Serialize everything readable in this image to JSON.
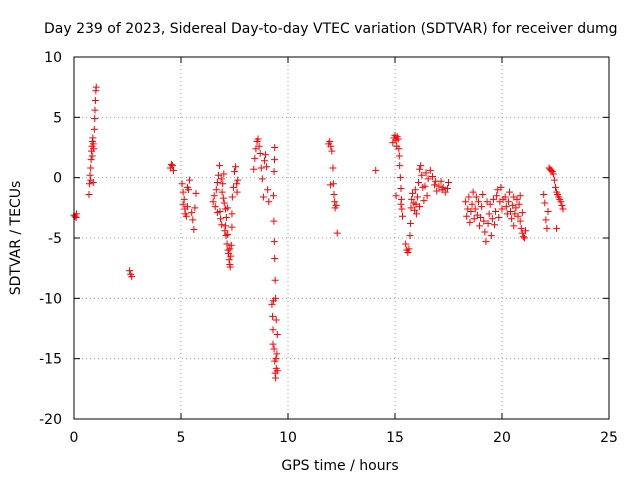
{
  "chart_data": {
    "type": "scatter",
    "title": "Day 239 of 2023, Sidereal Day-to-day VTEC variation (SDTVAR) for receiver dumg",
    "xlabel": "GPS time / hours",
    "ylabel": "SDTVAR / TECUs",
    "xlim": [
      0,
      25
    ],
    "ylim": [
      -20,
      10
    ],
    "xticks": [
      0,
      5,
      10,
      15,
      20,
      25
    ],
    "yticks": [
      -20,
      -15,
      -10,
      -5,
      0,
      5,
      10
    ],
    "xtick_labels": [
      "0",
      "5",
      "10",
      "15",
      "20",
      "25"
    ],
    "ytick_labels": [
      "-20",
      "-15",
      "-10",
      "-5",
      "0",
      "5",
      "10"
    ],
    "grid": true,
    "marker": "plus",
    "color": "#ff0000",
    "series": [
      {
        "name": "SDTVAR",
        "points": [
          [
            0.0,
            -3.1
          ],
          [
            0.05,
            -3.2
          ],
          [
            0.1,
            -3.3
          ],
          [
            0.12,
            -3.0
          ],
          [
            0.7,
            -1.4
          ],
          [
            0.72,
            -0.5
          ],
          [
            0.75,
            0.2
          ],
          [
            0.78,
            0.8
          ],
          [
            0.8,
            1.5
          ],
          [
            0.82,
            2.2
          ],
          [
            0.84,
            2.6
          ],
          [
            0.86,
            3.0
          ],
          [
            0.88,
            3.3
          ],
          [
            0.9,
            2.8
          ],
          [
            0.92,
            2.4
          ],
          [
            0.95,
            4.0
          ],
          [
            0.97,
            4.9
          ],
          [
            0.98,
            5.6
          ],
          [
            1.0,
            6.4
          ],
          [
            1.02,
            7.2
          ],
          [
            1.04,
            7.5
          ],
          [
            0.78,
            -0.2
          ],
          [
            0.85,
            1.8
          ],
          [
            0.9,
            -0.4
          ],
          [
            2.6,
            -7.7
          ],
          [
            2.65,
            -8.0
          ],
          [
            2.7,
            -8.2
          ],
          [
            4.5,
            0.8
          ],
          [
            4.55,
            1.1
          ],
          [
            4.6,
            1.0
          ],
          [
            4.65,
            0.6
          ],
          [
            5.05,
            -0.5
          ],
          [
            5.1,
            -1.2
          ],
          [
            5.15,
            -1.8
          ],
          [
            5.18,
            -2.6
          ],
          [
            5.2,
            -3.0
          ],
          [
            5.25,
            -3.2
          ],
          [
            5.3,
            -2.4
          ],
          [
            5.35,
            -1.0
          ],
          [
            5.4,
            -0.2
          ],
          [
            5.5,
            -2.9
          ],
          [
            5.55,
            -3.5
          ],
          [
            5.6,
            -4.3
          ],
          [
            5.65,
            -2.5
          ],
          [
            5.7,
            -1.3
          ],
          [
            5.1,
            -2.2
          ],
          [
            5.3,
            -0.8
          ],
          [
            6.5,
            -2.0
          ],
          [
            6.55,
            -1.5
          ],
          [
            6.6,
            -2.4
          ],
          [
            6.65,
            -1.0
          ],
          [
            6.7,
            -0.4
          ],
          [
            6.75,
            0.2
          ],
          [
            6.8,
            1.0
          ],
          [
            6.82,
            -2.8
          ],
          [
            6.85,
            -3.4
          ],
          [
            6.9,
            -3.9
          ],
          [
            6.92,
            -1.2
          ],
          [
            6.95,
            -0.5
          ],
          [
            7.0,
            0.3
          ],
          [
            7.02,
            -2.1
          ],
          [
            7.05,
            -4.4
          ],
          [
            7.08,
            -4.0
          ],
          [
            7.1,
            -4.8
          ],
          [
            7.12,
            -3.3
          ],
          [
            7.15,
            -5.5
          ],
          [
            7.18,
            -2.5
          ],
          [
            7.2,
            -6.0
          ],
          [
            7.22,
            -6.3
          ],
          [
            7.25,
            -6.8
          ],
          [
            7.28,
            -7.2
          ],
          [
            7.3,
            -7.4
          ],
          [
            7.32,
            -6.5
          ],
          [
            7.35,
            -5.6
          ],
          [
            7.38,
            -3.0
          ],
          [
            7.4,
            -1.6
          ],
          [
            7.45,
            -0.8
          ],
          [
            7.5,
            0.5
          ],
          [
            7.55,
            0.9
          ],
          [
            7.6,
            -0.5
          ],
          [
            7.62,
            -1.2
          ],
          [
            7.65,
            -0.2
          ],
          [
            6.88,
            -0.1
          ],
          [
            6.98,
            -1.7
          ],
          [
            7.08,
            -2.6
          ],
          [
            7.18,
            -4.7
          ],
          [
            7.28,
            -5.9
          ],
          [
            7.38,
            -4.1
          ],
          [
            6.7,
            -2.9
          ],
          [
            8.4,
            0.7
          ],
          [
            8.45,
            1.6
          ],
          [
            8.5,
            2.4
          ],
          [
            8.55,
            3.0
          ],
          [
            8.6,
            3.2
          ],
          [
            8.65,
            2.6
          ],
          [
            8.7,
            2.0
          ],
          [
            8.75,
            0.8
          ],
          [
            8.8,
            -0.1
          ],
          [
            8.85,
            -1.6
          ],
          [
            8.9,
            1.4
          ],
          [
            8.95,
            1.9
          ],
          [
            9.0,
            0.9
          ],
          [
            9.05,
            -1.0
          ],
          [
            9.1,
            -2.0
          ],
          [
            9.25,
            -10.5
          ],
          [
            9.28,
            -11.5
          ],
          [
            9.3,
            -12.6
          ],
          [
            9.32,
            -10.2
          ],
          [
            9.35,
            -14.2
          ],
          [
            9.38,
            -15.2
          ],
          [
            9.4,
            -16.2
          ],
          [
            9.42,
            -16.6
          ],
          [
            9.45,
            -15.8
          ],
          [
            9.48,
            -14.6
          ],
          [
            9.5,
            -13.0
          ],
          [
            9.45,
            -11.8
          ],
          [
            9.42,
            -10.0
          ],
          [
            9.4,
            -8.5
          ],
          [
            9.38,
            -6.7
          ],
          [
            9.36,
            -5.3
          ],
          [
            9.34,
            -3.6
          ],
          [
            9.32,
            -1.5
          ],
          [
            9.35,
            0.5
          ],
          [
            9.37,
            1.5
          ],
          [
            9.38,
            2.5
          ],
          [
            9.3,
            -13.8
          ],
          [
            9.5,
            -16.0
          ],
          [
            9.44,
            -15.0
          ],
          [
            11.9,
            2.8
          ],
          [
            11.95,
            3.0
          ],
          [
            12.0,
            2.6
          ],
          [
            12.05,
            2.2
          ],
          [
            12.1,
            0.8
          ],
          [
            12.12,
            -0.5
          ],
          [
            12.15,
            -1.4
          ],
          [
            12.18,
            -2.0
          ],
          [
            12.2,
            -2.5
          ],
          [
            12.25,
            -2.3
          ],
          [
            12.3,
            -4.6
          ],
          [
            11.98,
            -0.6
          ],
          [
            14.1,
            0.6
          ],
          [
            14.9,
            2.9
          ],
          [
            14.95,
            3.3
          ],
          [
            15.0,
            3.5
          ],
          [
            15.05,
            3.1
          ],
          [
            15.08,
            2.6
          ],
          [
            15.1,
            3.4
          ],
          [
            15.15,
            3.2
          ],
          [
            15.18,
            2.4
          ],
          [
            15.2,
            1.8
          ],
          [
            15.22,
            1.0
          ],
          [
            15.25,
            0.0
          ],
          [
            15.28,
            -0.9
          ],
          [
            15.3,
            -1.8
          ],
          [
            15.32,
            -2.6
          ],
          [
            15.35,
            -3.2
          ],
          [
            15.28,
            -2.2
          ],
          [
            15.05,
            -1.5
          ],
          [
            15.5,
            -5.5
          ],
          [
            15.55,
            -6.0
          ],
          [
            15.6,
            -6.2
          ],
          [
            15.65,
            -5.9
          ],
          [
            15.7,
            -4.8
          ],
          [
            15.72,
            -3.8
          ],
          [
            15.75,
            -2.5
          ],
          [
            15.78,
            -1.8
          ],
          [
            15.82,
            -1.3
          ],
          [
            15.88,
            -2.1
          ],
          [
            15.92,
            -2.7
          ],
          [
            15.98,
            -2.2
          ],
          [
            16.05,
            -1.6
          ],
          [
            16.1,
            -0.4
          ],
          [
            16.15,
            0.7
          ],
          [
            16.2,
            1.0
          ],
          [
            16.25,
            0.2
          ],
          [
            16.3,
            -0.8
          ],
          [
            16.35,
            -1.9
          ],
          [
            16.4,
            -0.7
          ],
          [
            16.45,
            0.4
          ],
          [
            16.55,
            -0.1
          ],
          [
            16.65,
            0.6
          ],
          [
            16.75,
            0.1
          ],
          [
            16.85,
            -0.6
          ],
          [
            16.95,
            -1.1
          ],
          [
            17.05,
            -0.7
          ],
          [
            17.15,
            -0.3
          ],
          [
            17.25,
            -0.8
          ],
          [
            17.35,
            -1.2
          ],
          [
            17.45,
            -0.9
          ],
          [
            17.5,
            -0.4
          ],
          [
            16.0,
            -3.0
          ],
          [
            16.15,
            -2.4
          ],
          [
            15.95,
            -1.0
          ],
          [
            16.5,
            -1.5
          ],
          [
            16.9,
            -0.3
          ],
          [
            17.2,
            -1.0
          ],
          [
            18.3,
            -2.0
          ],
          [
            18.35,
            -3.2
          ],
          [
            18.4,
            -2.6
          ],
          [
            18.45,
            -1.6
          ],
          [
            18.5,
            -3.7
          ],
          [
            18.55,
            -2.8
          ],
          [
            18.6,
            -2.2
          ],
          [
            18.65,
            -1.2
          ],
          [
            18.7,
            -3.4
          ],
          [
            18.75,
            -2.6
          ],
          [
            18.8,
            -1.6
          ],
          [
            18.85,
            -3.1
          ],
          [
            18.9,
            -2.0
          ],
          [
            18.95,
            -4.0
          ],
          [
            19.0,
            -3.3
          ],
          [
            19.05,
            -2.4
          ],
          [
            19.1,
            -1.4
          ],
          [
            19.15,
            -3.6
          ],
          [
            19.2,
            -4.5
          ],
          [
            19.25,
            -5.3
          ],
          [
            19.3,
            -2.0
          ],
          [
            19.35,
            -3.8
          ],
          [
            19.4,
            -3.0
          ],
          [
            19.45,
            -2.2
          ],
          [
            19.5,
            -4.8
          ],
          [
            19.55,
            -3.4
          ],
          [
            19.6,
            -1.8
          ],
          [
            19.65,
            -3.9
          ],
          [
            19.7,
            -2.8
          ],
          [
            19.75,
            -1.5
          ],
          [
            19.8,
            -1.0
          ],
          [
            19.85,
            -3.3
          ],
          [
            19.9,
            -2.0
          ],
          [
            19.95,
            -0.8
          ],
          [
            20.0,
            -2.6
          ],
          [
            20.05,
            -1.8
          ],
          [
            20.15,
            -1.6
          ],
          [
            20.2,
            -2.4
          ],
          [
            20.25,
            -3.0
          ],
          [
            20.3,
            -2.0
          ],
          [
            20.35,
            -1.2
          ],
          [
            20.4,
            -2.8
          ],
          [
            20.45,
            -3.4
          ],
          [
            20.5,
            -2.3
          ],
          [
            20.55,
            -1.6
          ],
          [
            20.6,
            -3.0
          ],
          [
            20.65,
            -2.5
          ],
          [
            20.7,
            -1.8
          ],
          [
            20.75,
            -3.2
          ],
          [
            20.8,
            -2.2
          ],
          [
            20.85,
            -3.6
          ],
          [
            20.9,
            -4.2
          ],
          [
            20.95,
            -4.6
          ],
          [
            21.0,
            -4.9
          ],
          [
            21.05,
            -5.0
          ],
          [
            21.1,
            -4.4
          ],
          [
            20.85,
            -1.5
          ],
          [
            20.95,
            -2.9
          ],
          [
            20.55,
            -4.0
          ],
          [
            21.95,
            -1.4
          ],
          [
            22.0,
            -2.1
          ],
          [
            22.05,
            -3.5
          ],
          [
            22.1,
            -4.2
          ],
          [
            22.15,
            -2.8
          ],
          [
            22.2,
            0.8
          ],
          [
            22.25,
            0.7
          ],
          [
            22.3,
            0.6
          ],
          [
            22.35,
            0.5
          ],
          [
            22.4,
            0.3
          ],
          [
            22.45,
            -0.2
          ],
          [
            22.5,
            -0.8
          ],
          [
            22.55,
            -1.2
          ],
          [
            22.6,
            -1.4
          ],
          [
            22.65,
            -1.6
          ],
          [
            22.7,
            -1.8
          ],
          [
            22.75,
            -2.0
          ],
          [
            22.8,
            -2.3
          ],
          [
            22.85,
            -2.6
          ],
          [
            22.55,
            -4.2
          ]
        ]
      }
    ]
  }
}
